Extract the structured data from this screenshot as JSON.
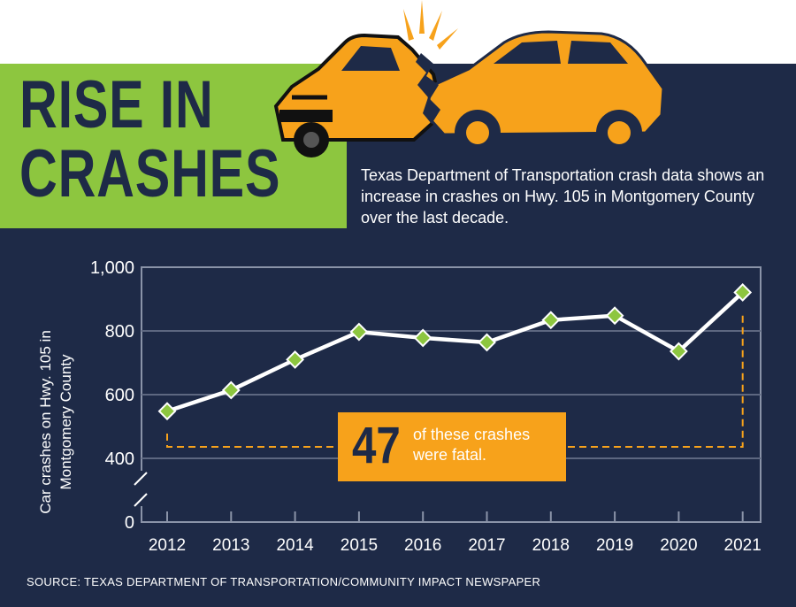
{
  "headline": {
    "line1": "RISE IN",
    "line2": "CRASHES"
  },
  "intro": "Texas Department of Transportation crash data shows an increase in crashes on Hwy. 105 in Montgomery County over the last decade.",
  "callout": {
    "number": "47",
    "text": "of these crashes were fatal."
  },
  "source": "SOURCE: TEXAS DEPARTMENT OF TRANSPORTATION/COMMUNITY IMPACT NEWSPAPER",
  "colors": {
    "navy": "#1e2a47",
    "green": "#8dc63f",
    "orange": "#f7a21b",
    "marker": "#8dc63f",
    "line": "#ffffff"
  },
  "icons": [
    "car-crash-illustration"
  ],
  "chart_data": {
    "type": "line",
    "title": "",
    "xlabel": "",
    "ylabel": "Car crashes on Hwy. 105 in Montgomery County",
    "x": [
      "2012",
      "2013",
      "2014",
      "2015",
      "2016",
      "2017",
      "2018",
      "2019",
      "2020",
      "2021"
    ],
    "values": [
      548,
      614,
      710,
      797,
      778,
      764,
      834,
      848,
      736,
      921
    ],
    "y_ticks": [
      "0",
      "400",
      "600",
      "800",
      "1,000"
    ],
    "ylim": [
      0,
      1000
    ],
    "axis_break": "between 0 and 400",
    "grid": true,
    "annotation": {
      "start": "2012",
      "end": "2021",
      "value": "47",
      "text": "of these crashes were fatal."
    }
  }
}
